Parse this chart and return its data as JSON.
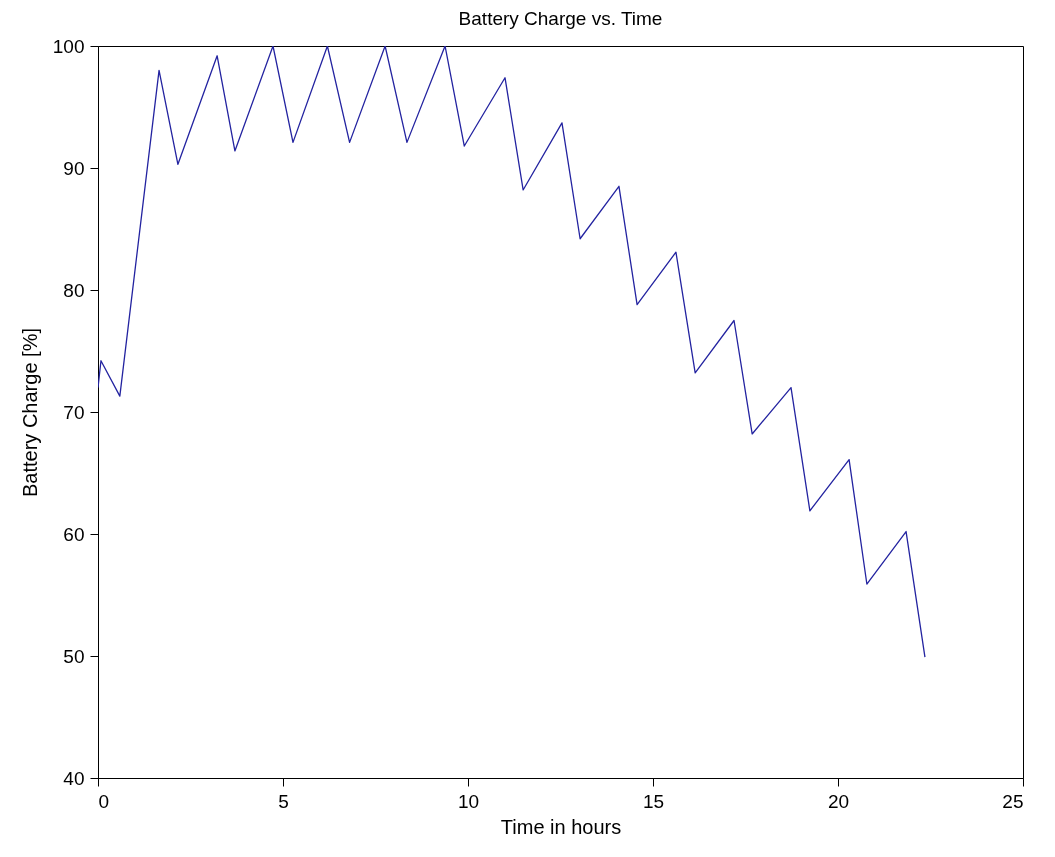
{
  "chart_data": {
    "type": "line",
    "title": "Battery Charge vs. Time",
    "xlabel": "Time in hours",
    "ylabel": "Battery Charge [%]",
    "x": [
      0,
      0.08,
      0.59,
      1.65,
      2.16,
      3.22,
      3.7,
      4.73,
      5.27,
      6.2,
      6.8,
      7.76,
      8.35,
      9.38,
      9.9,
      11.0,
      11.49,
      12.54,
      13.03,
      14.08,
      14.57,
      15.62,
      16.14,
      17.19,
      17.68,
      18.73,
      19.24,
      20.3,
      20.78,
      21.84,
      22.35
    ],
    "series": [
      {
        "color": "#2323a0",
        "values": [
          72,
          74.2,
          71.3,
          98,
          90.3,
          99.2,
          91.4,
          100,
          92.1,
          100,
          92.1,
          100,
          92.1,
          100,
          91.8,
          97.4,
          88.2,
          93.7,
          84.2,
          88.5,
          78.8,
          83.1,
          73.2,
          77.5,
          68.2,
          72,
          61.9,
          66.1,
          55.9,
          60.2,
          49.9
        ]
      }
    ],
    "xlim": [
      0,
      25
    ],
    "xticks": [
      0,
      5,
      10,
      15,
      20,
      25
    ],
    "ylim": [
      40,
      100
    ],
    "yticks": [
      40,
      50,
      60,
      70,
      80,
      90,
      100
    ],
    "grid": false,
    "legend": false
  }
}
